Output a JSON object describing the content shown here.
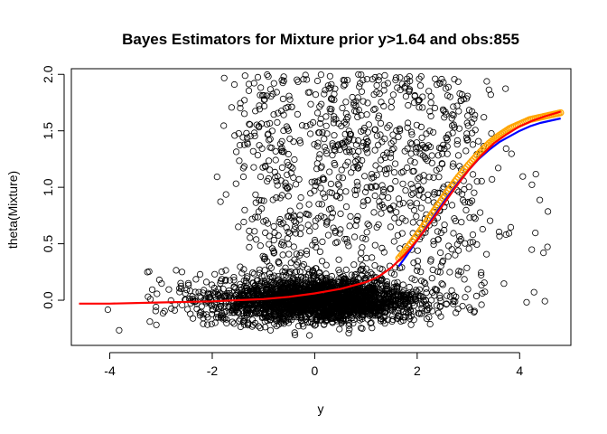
{
  "chart_data": {
    "type": "scatter",
    "title": "Bayes Estimators for Mixture prior y>1.64 and obs:855",
    "xlabel": "y",
    "ylabel": "theta(Mixture)",
    "xlim": [
      -4.75,
      5.0
    ],
    "ylim": [
      -0.4,
      2.05
    ],
    "x_ticks": [
      -4,
      -2,
      0,
      2,
      4
    ],
    "y_ticks": [
      0.0,
      0.5,
      1.0,
      1.5,
      2.0
    ],
    "x_tick_labels": [
      "-4",
      "-2",
      "0",
      "2",
      "4"
    ],
    "y_tick_labels": [
      "0.0",
      "0.5",
      "1.0",
      "1.5",
      "2.0"
    ],
    "grid": false,
    "legend": "none",
    "scatter_color": "#000000",
    "series": [
      {
        "color": "#ffa500",
        "style": "points",
        "x": [
          1.64,
          1.8,
          2.0,
          2.2,
          2.4,
          2.6,
          2.8,
          3.0,
          3.2,
          3.4,
          3.6,
          3.8,
          4.0,
          4.2,
          4.4,
          4.6,
          4.8
        ],
        "y": [
          0.37,
          0.46,
          0.58,
          0.71,
          0.84,
          0.97,
          1.09,
          1.2,
          1.3,
          1.39,
          1.46,
          1.52,
          1.56,
          1.6,
          1.62,
          1.64,
          1.66
        ]
      },
      {
        "color": "#0000ff",
        "style": "line",
        "x": [
          1.64,
          1.8,
          2.0,
          2.2,
          2.4,
          2.6,
          2.8,
          3.0,
          3.2,
          3.4,
          3.6,
          3.8,
          4.0,
          4.2,
          4.4,
          4.6,
          4.8
        ],
        "y": [
          0.3,
          0.4,
          0.53,
          0.66,
          0.79,
          0.92,
          1.04,
          1.15,
          1.25,
          1.33,
          1.4,
          1.45,
          1.5,
          1.54,
          1.57,
          1.59,
          1.61
        ]
      },
      {
        "color": "#ff0000",
        "style": "line",
        "x": [
          -4.6,
          -4.0,
          -3.0,
          -2.0,
          -1.5,
          -1.0,
          -0.5,
          0.0,
          0.5,
          1.0,
          1.25,
          1.5,
          1.75,
          2.0,
          2.25,
          2.5,
          2.75,
          3.0,
          3.25,
          3.5,
          3.75,
          4.0,
          4.25,
          4.5,
          4.8
        ],
        "y": [
          -0.03,
          -0.03,
          -0.02,
          -0.01,
          0.0,
          0.01,
          0.03,
          0.06,
          0.1,
          0.16,
          0.21,
          0.29,
          0.4,
          0.53,
          0.68,
          0.84,
          1.0,
          1.15,
          1.28,
          1.39,
          1.47,
          1.54,
          1.59,
          1.63,
          1.67
        ]
      }
    ]
  }
}
